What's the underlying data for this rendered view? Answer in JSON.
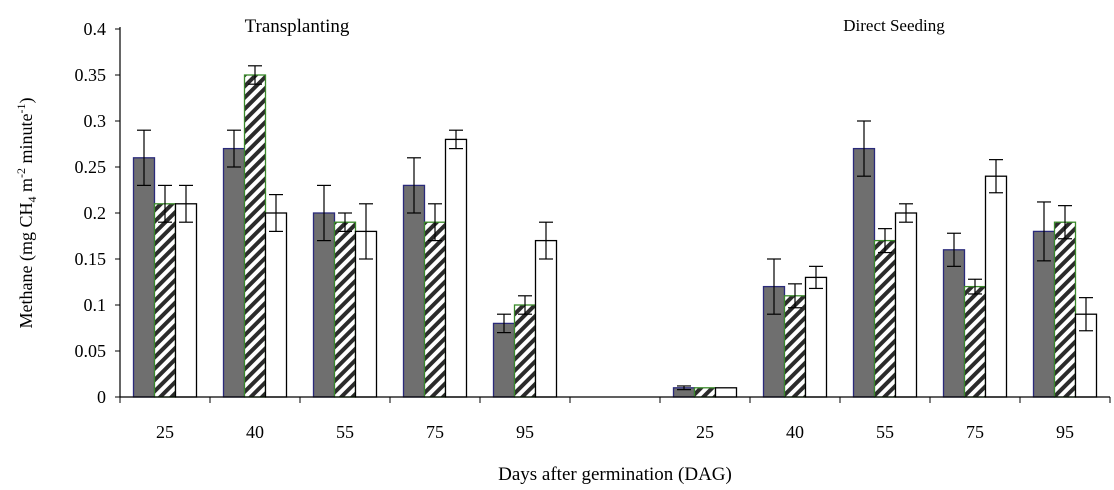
{
  "colors": {
    "gray_fill": "#6f6f6f",
    "gray_border": "#2a2a7a",
    "hatch_border": "#3a8a2a",
    "white_fill": "#ffffff",
    "axis": "#000000"
  },
  "chart_data": {
    "type": "bar",
    "title": "",
    "xlabel": "Days after germination (DAG)",
    "ylabel": "Methane (mg CH4 m-2 minute-1)",
    "ylabel_parts": {
      "a": "Methane (mg CH",
      "sub": "4",
      "b": " m",
      "sup1": "-2",
      "c": " minute",
      "sup2": "-1",
      "d": ")"
    },
    "ylim": [
      0,
      0.4
    ],
    "yticks": [
      "0",
      "0.05",
      "0.1",
      "0.15",
      "0.2",
      "0.25",
      "0.3",
      "0.35",
      "0.4"
    ],
    "grid": false,
    "legend": "none",
    "group_labels": [
      "Transplanting",
      "Direct Seeding"
    ],
    "categories": [
      "25",
      "40",
      "55",
      "75",
      "95",
      "",
      "25",
      "40",
      "55",
      "75",
      "95"
    ],
    "series": [
      {
        "style": "gray",
        "values": [
          0.26,
          0.27,
          0.2,
          0.23,
          0.08,
          null,
          0.01,
          0.12,
          0.27,
          0.16,
          0.18
        ],
        "errors": [
          0.03,
          0.02,
          0.03,
          0.03,
          0.01,
          null,
          0.002,
          0.03,
          0.03,
          0.018,
          0.032
        ]
      },
      {
        "style": "hatched",
        "values": [
          0.21,
          0.35,
          0.19,
          0.19,
          0.1,
          null,
          0.01,
          0.11,
          0.17,
          0.12,
          0.19
        ],
        "errors": [
          0.02,
          0.01,
          0.01,
          0.02,
          0.01,
          null,
          0.0,
          0.013,
          0.013,
          0.008,
          0.018
        ]
      },
      {
        "style": "white",
        "values": [
          0.21,
          0.2,
          0.18,
          0.28,
          0.17,
          null,
          0.01,
          0.13,
          0.2,
          0.24,
          0.09
        ],
        "errors": [
          0.02,
          0.02,
          0.03,
          0.01,
          0.02,
          null,
          0.0,
          0.012,
          0.01,
          0.018,
          0.018
        ]
      }
    ]
  }
}
